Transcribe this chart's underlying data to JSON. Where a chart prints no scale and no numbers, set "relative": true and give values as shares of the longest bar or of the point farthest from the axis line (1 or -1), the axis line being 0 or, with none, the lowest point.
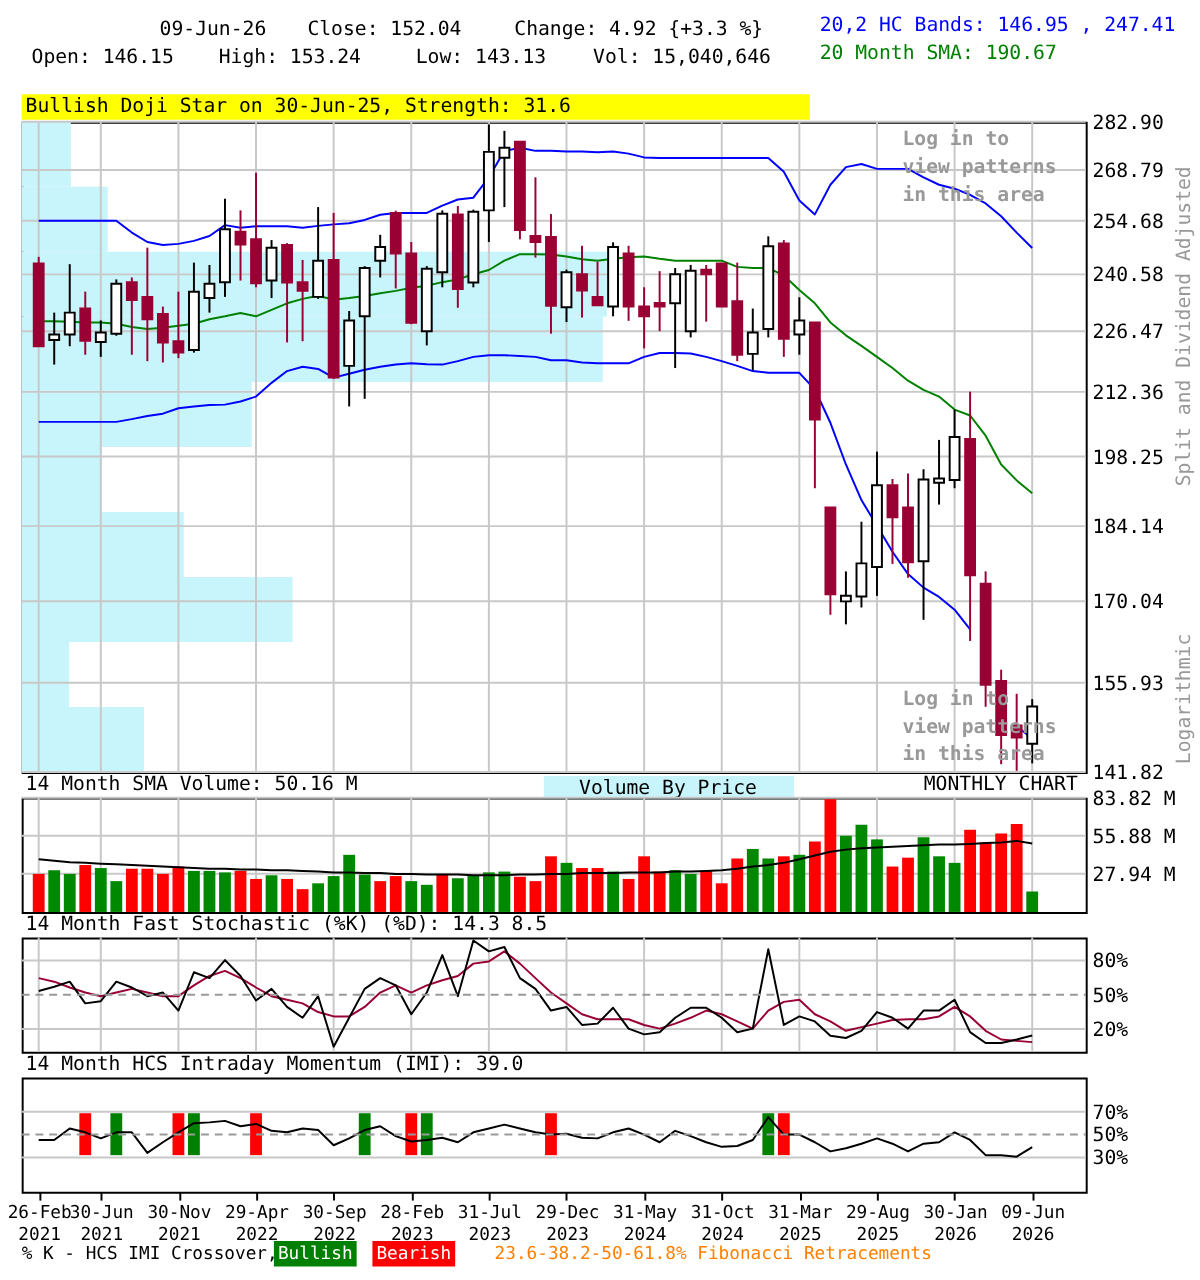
{
  "chart_data": [
    {
      "type": "candlestick",
      "log": true,
      "grid": true,
      "tick_labels": "y",
      "ylabel": "Split and Dividend Adjusted",
      "ylim": [
        141.82,
        282.9
      ],
      "yticks": [
        141.82,
        155.93,
        170.04,
        184.14,
        198.25,
        212.36,
        226.47,
        240.58,
        254.68,
        268.79,
        {
          "value": 282.9,
          "label": "282.90"
        }
      ],
      "categories": [
        null,
        null,
        null,
        null,
        null,
        null,
        null,
        null,
        null,
        null,
        null,
        null,
        null,
        null,
        null,
        null,
        null,
        null,
        null,
        null,
        null,
        null,
        null,
        null,
        null,
        null,
        null,
        null,
        null,
        null,
        null,
        null,
        null,
        null,
        null,
        null,
        null,
        null,
        null,
        null,
        null,
        null,
        null,
        null,
        null,
        null,
        null,
        null,
        null,
        null,
        null,
        null,
        null,
        null,
        null,
        null,
        null,
        null,
        null,
        null,
        null,
        null,
        null,
        null,
        null
      ],
      "ohlc": [
        [
          243.4,
          245.1,
          222.9,
          222.9
        ],
        [
          224.4,
          231.0,
          218.6,
          225.7
        ],
        [
          225.7,
          243.2,
          222.9,
          231.0
        ],
        [
          232.0,
          236.2,
          220.9,
          224.2
        ],
        [
          223.9,
          229.1,
          220.4,
          226.2
        ],
        [
          225.9,
          239.3,
          225.4,
          238.2
        ],
        [
          238.6,
          239.8,
          220.9,
          234.1
        ],
        [
          234.9,
          247.5,
          219.4,
          229.4
        ],
        [
          230.7,
          232.5,
          219.1,
          223.8
        ],
        [
          224.1,
          236.2,
          220.1,
          221.4
        ],
        [
          222.0,
          243.6,
          221.4,
          236.2
        ],
        [
          234.6,
          243.0,
          231.0,
          238.2
        ],
        [
          238.6,
          260.7,
          234.9,
          252.4
        ],
        [
          251.7,
          257.5,
          239.0,
          248.3
        ],
        [
          249.7,
          268.0,
          237.3,
          238.3
        ],
        [
          239.0,
          249.5,
          234.6,
          247.5
        ],
        [
          248.2,
          248.7,
          223.8,
          238.5
        ],
        [
          238.6,
          244.3,
          224.1,
          236.4
        ],
        [
          234.9,
          258.4,
          234.4,
          244.1
        ],
        [
          244.3,
          256.8,
          215.3,
          215.6
        ],
        [
          218.3,
          231.4,
          209.1,
          229.1
        ],
        [
          230.1,
          242.7,
          210.8,
          242.2
        ],
        [
          244.1,
          250.9,
          239.8,
          247.7
        ],
        [
          256.8,
          257.4,
          237.0,
          246.0
        ],
        [
          246.0,
          249.0,
          228.2,
          228.5
        ],
        [
          226.5,
          242.7,
          223.1,
          242.0
        ],
        [
          241.1,
          257.5,
          237.3,
          256.6
        ],
        [
          256.4,
          258.7,
          232.2,
          236.9
        ],
        [
          238.5,
          257.7,
          237.3,
          257.1
        ],
        [
          257.5,
          282.1,
          249.0,
          274.0
        ],
        [
          272.3,
          280.2,
          258.4,
          275.2
        ],
        [
          277.0,
          277.0,
          249.7,
          252.2
        ],
        [
          250.6,
          266.7,
          244.9,
          249.0
        ],
        [
          250.3,
          256.5,
          225.9,
          232.7
        ],
        [
          232.3,
          241.8,
          228.7,
          241.1
        ],
        [
          240.6,
          248.0,
          229.8,
          236.5
        ],
        [
          234.9,
          243.8,
          232.8,
          232.8
        ],
        [
          232.5,
          248.9,
          230.1,
          247.7
        ],
        [
          246.0,
          248.0,
          229.0,
          232.5
        ],
        [
          232.5,
          237.3,
          222.4,
          230.1
        ],
        [
          233.4,
          241.4,
          226.5,
          232.5
        ],
        [
          233.3,
          242.2,
          217.8,
          240.6
        ],
        [
          226.5,
          243.0,
          225.0,
          241.5
        ],
        [
          241.8,
          243.0,
          228.8,
          240.6
        ],
        [
          243.4,
          243.4,
          232.5,
          232.5
        ],
        [
          233.8,
          243.6,
          219.4,
          220.9
        ],
        [
          221.1,
          232.0,
          217.3,
          226.2
        ],
        [
          227.0,
          250.5,
          225.0,
          247.9
        ],
        [
          248.6,
          249.5,
          220.4,
          224.7
        ],
        [
          225.7,
          234.8,
          220.9,
          229.1
        ],
        [
          228.6,
          228.6,
          191.7,
          206.2
        ],
        [
          187.8,
          187.8,
          167.6,
          171.3
        ],
        [
          170.0,
          175.5,
          165.9,
          171.0
        ],
        [
          170.9,
          185.0,
          168.9,
          177.0
        ],
        [
          176.3,
          199.3,
          171.0,
          192.3
        ],
        [
          192.3,
          193.6,
          176.9,
          185.9
        ],
        [
          187.8,
          194.7,
          174.3,
          177.2
        ],
        [
          177.4,
          195.6,
          166.7,
          193.5
        ],
        [
          192.8,
          201.8,
          188.4,
          193.7
        ],
        [
          193.4,
          208.4,
          191.7,
          202.4
        ],
        [
          202.0,
          212.4,
          163.0,
          174.8
        ],
        [
          173.2,
          175.5,
          152.0,
          155.6
        ],
        [
          156.2,
          158.1,
          143.0,
          147.5
        ],
        [
          149.0,
          154.1,
          142.0,
          147.12
        ],
        [
          146.15,
          153.24,
          143.13,
          152.04
        ]
      ],
      "colors": [
        "#990033",
        "#ffffff",
        "#ffffff",
        "#990033",
        "#ffffff",
        "#ffffff",
        "#990033",
        "#990033",
        "#990033",
        "#990033",
        "#ffffff",
        "#ffffff",
        "#ffffff",
        "#990033",
        "#990033",
        "#ffffff",
        "#990033",
        "#990033",
        "#ffffff",
        "#990033",
        "#ffffff",
        "#ffffff",
        "#ffffff",
        "#990033",
        "#990033",
        "#ffffff",
        "#ffffff",
        "#990033",
        "#ffffff",
        "#ffffff",
        "#ffffff",
        "#990033",
        "#990033",
        "#990033",
        "#ffffff",
        "#990033",
        "#990033",
        "#ffffff",
        "#990033",
        "#990033",
        "#990033",
        "#ffffff",
        "#ffffff",
        "#990033",
        "#990033",
        "#990033",
        "#ffffff",
        "#ffffff",
        "#990033",
        "#ffffff",
        "#990033",
        "#990033",
        "#ffffff",
        "#ffffff",
        "#ffffff",
        "#990033",
        "#990033",
        "#ffffff",
        "#ffffff",
        "#ffffff",
        "#990033",
        "#990033",
        "#990033",
        "#990033",
        "#ffffff"
      ],
      "series": [
        {
          "name": "20,2 HC Bands: 146.95 , 247.41",
          "type": "line",
          "color": "#0000ff",
          "values": [
            254.7,
            254.7,
            254.7,
            254.7,
            254.7,
            254.7,
            251.5,
            249.0,
            248.2,
            248.5,
            249.3,
            250.6,
            253.5,
            252.8,
            253.2,
            253.2,
            253.2,
            252.8,
            253.3,
            253.7,
            254.0,
            254.9,
            256.3,
            256.8,
            256.8,
            256.8,
            258.8,
            260.5,
            261.0,
            266.7,
            274.3,
            275.2,
            274.3,
            274.3,
            274.1,
            274.1,
            273.9,
            274.1,
            273.5,
            272.4,
            272.2,
            272.2,
            272.2,
            272.2,
            272.2,
            272.2,
            272.2,
            272.2,
            268.3,
            260.2,
            256.4,
            264.6,
            269.6,
            270.5,
            269.1,
            269.1,
            269.1,
            266.7,
            264.6,
            263.5,
            261.8,
            259.4,
            255.9,
            251.5,
            247.41
          ]
        },
        {
          "type": "line",
          "color": "#0000ff",
          "values": [
            205.7,
            205.7,
            205.7,
            205.7,
            205.7,
            205.7,
            206.3,
            207.0,
            207.5,
            208.7,
            209.1,
            209.4,
            209.5,
            210.2,
            211.3,
            214.4,
            217.1,
            218.1,
            217.6,
            215.6,
            216.5,
            217.4,
            218.1,
            218.6,
            218.9,
            218.7,
            218.6,
            219.4,
            220.4,
            220.8,
            220.8,
            220.6,
            220.4,
            219.6,
            219.6,
            219.1,
            218.9,
            218.9,
            218.9,
            220.4,
            221.3,
            221.3,
            221.2,
            220.4,
            219.4,
            218.3,
            217.1,
            216.7,
            216.7,
            216.7,
            212.9,
            205.5,
            196.6,
            189.3,
            184.2,
            179.2,
            175.0,
            172.5,
            170.8,
            168.5,
            165.0,
            null,
            null,
            148.9,
            146.95
          ]
        },
        {
          "name": "20 Month SMA: 190.67",
          "type": "line",
          "color": "#008000",
          "values": [
            228.9,
            228.9,
            228.8,
            228.6,
            228.6,
            228.3,
            227.5,
            227.0,
            227.3,
            227.8,
            228.3,
            229.4,
            230.1,
            230.9,
            230.1,
            231.7,
            233.3,
            234.4,
            235.2,
            234.2,
            234.6,
            235.1,
            235.8,
            236.4,
            237.2,
            237.7,
            238.6,
            239.3,
            240.6,
            241.7,
            244.1,
            245.8,
            245.8,
            245.7,
            245.2,
            244.5,
            244.1,
            244.6,
            245.0,
            245.2,
            244.6,
            244.1,
            244.1,
            244.1,
            244.1,
            242.5,
            242.2,
            242.2,
            240.3,
            236.6,
            233.3,
            228.6,
            225.5,
            223.0,
            220.4,
            217.8,
            214.9,
            212.8,
            211.3,
            208.4,
            207.1,
            202.7,
            196.6,
            193.3,
            190.67
          ]
        }
      ],
      "annotations": [
        "09-Jun-26",
        "Close: 152.04",
        "Change: 4.92 {+3.3 %}",
        "Open: 146.15",
        "High: 153.24",
        "Low: 143.13",
        "Vol: 15,040,646",
        "Bullish Doji Star on 30-Jun-25, Strength: 31.6",
        "Log in to view patterns in this area",
        "Log in to view patterns in this area",
        "Logarithmic"
      ]
    },
    {
      "type": "bar",
      "orientation": "horizontal",
      "relative": true,
      "categories": [
        null,
        null,
        null,
        null,
        null,
        null,
        null,
        null,
        null,
        null
      ],
      "series": [
        {
          "name": "Volume By Price",
          "color": "#c8f4fb",
          "values": [
            0.084,
            0.147,
            1.0,
            0.993,
            0.393,
            0.137,
            0.277,
            0.463,
            0.081,
            0.209
          ]
        }
      ]
    },
    {
      "type": "bar",
      "title": "14 Month SMA Volume: 50.16 M",
      "grid": true,
      "tick_labels": "y",
      "ylim": [
        0,
        83.82
      ],
      "yticks": [
        {
          "value": 27.94,
          "label": "27.94 M"
        },
        {
          "value": 55.88,
          "label": "55.88 M"
        },
        {
          "value": 83.82,
          "label": "83.82 M"
        }
      ],
      "categories": [
        null,
        null,
        null,
        null,
        null,
        null,
        null,
        null,
        null,
        null,
        null,
        null,
        null,
        null,
        null,
        null,
        null,
        null,
        null,
        null,
        null,
        null,
        null,
        null,
        null,
        null,
        null,
        null,
        null,
        null,
        null,
        null,
        null,
        null,
        null,
        null,
        null,
        null,
        null,
        null,
        null,
        null,
        null,
        null,
        null,
        null,
        null,
        null,
        null,
        null,
        null,
        null,
        null,
        null,
        null,
        null,
        null,
        null,
        null,
        null,
        null,
        null,
        null,
        null,
        null
      ],
      "values": [
        27.9,
        30.6,
        27.9,
        34.4,
        32.2,
        22.6,
        31.7,
        31.7,
        27.9,
        33.3,
        30.1,
        30.1,
        29.0,
        30.1,
        24.2,
        26.9,
        24.2,
        16.7,
        21.0,
        26.3,
        41.9,
        27.4,
        22.6,
        26.3,
        22.6,
        19.9,
        27.4,
        24.7,
        26.9,
        29.0,
        29.6,
        25.8,
        22.6,
        40.8,
        36.0,
        32.2,
        32.2,
        29.6,
        24.2,
        40.8,
        29.6,
        30.6,
        27.9,
        30.1,
        21.0,
        39.2,
        46.2,
        39.2,
        40.8,
        41.9,
        51.6,
        82.7,
        55.9,
        63.9,
        53.2,
        33.3,
        39.8,
        54.8,
        40.8,
        36.0,
        60.2,
        51.0,
        57.5,
        64.5,
        15.04
      ],
      "colors": [
        "#ff0000",
        "#008800",
        "#008800",
        "#ff0000",
        "#008800",
        "#008800",
        "#ff0000",
        "#ff0000",
        "#ff0000",
        "#ff0000",
        "#008800",
        "#008800",
        "#008800",
        "#ff0000",
        "#ff0000",
        "#008800",
        "#ff0000",
        "#ff0000",
        "#008800",
        "#008800",
        "#008800",
        "#008800",
        "#ff0000",
        "#ff0000",
        "#008800",
        "#008800",
        "#ff0000",
        "#008800",
        "#008800",
        "#008800",
        "#008800",
        "#ff0000",
        "#ff0000",
        "#ff0000",
        "#008800",
        "#ff0000",
        "#ff0000",
        "#008800",
        "#ff0000",
        "#ff0000",
        "#ff0000",
        "#008800",
        "#008800",
        "#ff0000",
        "#ff0000",
        "#ff0000",
        "#008800",
        "#008800",
        "#ff0000",
        "#008800",
        "#ff0000",
        "#ff0000",
        "#008800",
        "#008800",
        "#008800",
        "#ff0000",
        "#ff0000",
        "#008800",
        "#008800",
        "#008800",
        "#ff0000",
        "#ff0000",
        "#ff0000",
        "#ff0000",
        "#008800"
      ],
      "series": [
        {
          "type": "line",
          "color": "#000000",
          "values": [
            38.7,
            37.6,
            36.5,
            36.0,
            35.4,
            34.9,
            34.4,
            33.8,
            33.3,
            32.8,
            32.2,
            31.7,
            31.7,
            31.2,
            31.2,
            30.6,
            30.6,
            30.1,
            29.6,
            29.0,
            29.0,
            28.5,
            28.5,
            27.9,
            27.9,
            27.4,
            27.4,
            27.4,
            26.9,
            26.9,
            26.9,
            27.4,
            27.4,
            27.9,
            27.9,
            28.5,
            28.5,
            28.5,
            29.0,
            29.0,
            29.0,
            29.6,
            29.6,
            30.1,
            30.6,
            31.7,
            33.3,
            34.4,
            36.0,
            38.7,
            41.4,
            44.1,
            45.7,
            46.7,
            47.3,
            47.8,
            48.4,
            48.9,
            49.4,
            49.4,
            49.9,
            50.5,
            51.0,
            52.1,
            50.16
          ]
        }
      ],
      "annotations": [
        "MONTHLY CHART"
      ]
    },
    {
      "type": "line",
      "title": "14 Month Fast Stochastic (%K) (%D): 14.3  8.5",
      "grid": true,
      "tick_labels": "y",
      "ylim": [
        0,
        100
      ],
      "yticks": [
        {
          "value": 20,
          "label": "20%"
        },
        {
          "value": 50,
          "label": "50%"
        },
        {
          "value": 80,
          "label": "80%"
        }
      ],
      "ref_lines": [
        {
          "axis": "y",
          "value": 50,
          "line_style": "dashed",
          "color": "#999999"
        }
      ],
      "categories": [
        null,
        null,
        null,
        null,
        null,
        null,
        null,
        null,
        null,
        null,
        null,
        null,
        null,
        null,
        null,
        null,
        null,
        null,
        null,
        null,
        null,
        null,
        null,
        null,
        null,
        null,
        null,
        null,
        null,
        null,
        null,
        null,
        null,
        null,
        null,
        null,
        null,
        null,
        null,
        null,
        null,
        null,
        null,
        null,
        null,
        null,
        null,
        null,
        null,
        null,
        null,
        null,
        null,
        null,
        null,
        null,
        null,
        null,
        null,
        null,
        null,
        null,
        null,
        null,
        null
      ],
      "series": [
        {
          "type": "line",
          "color": "#990033",
          "values": [
            64.5,
            61.4,
            56.3,
            51.9,
            48.7,
            51.9,
            55.1,
            51.9,
            48.7,
            48.7,
            58.2,
            66.4,
            70.8,
            64.5,
            56.3,
            48.7,
            45.6,
            42.4,
            34.8,
            31.0,
            31.0,
            39.3,
            51.9,
            58.2,
            51.9,
            58.2,
            62.6,
            66.4,
            77.2,
            79.1,
            87.9,
            77.2,
            64.5,
            51.9,
            42.4,
            32.9,
            28.5,
            28.5,
            28.5,
            23.5,
            20.3,
            24.7,
            29.8,
            36.1,
            32.9,
            26.6,
            20.3,
            36.1,
            43.7,
            45.6,
            32.9,
            26.6,
            18.4,
            21.6,
            24.7,
            27.9,
            28.5,
            28.5,
            31.0,
            39.3,
            31.0,
            18.4,
            10.8,
            9.6,
            8.5
          ]
        },
        {
          "type": "line",
          "color": "#000000",
          "values": [
            53.2,
            56.9,
            61.4,
            42.4,
            44.3,
            61.4,
            56.3,
            48.7,
            51.9,
            36.1,
            69.6,
            64.5,
            80.3,
            66.4,
            44.9,
            55.1,
            39.3,
            29.8,
            48.7,
            4.5,
            29.8,
            55.1,
            64.5,
            58.2,
            32.9,
            51.9,
            84.7,
            48.7,
            97.4,
            87.9,
            91.7,
            64.5,
            55.1,
            36.1,
            39.3,
            23.5,
            24.7,
            38.6,
            20.3,
            15.3,
            17.2,
            29.8,
            38.6,
            38.6,
            29.8,
            17.2,
            20.3,
            89.8,
            23.5,
            31.0,
            26.6,
            14.0,
            12.1,
            18.4,
            34.8,
            29.8,
            20.3,
            36.1,
            36.1,
            45.6,
            17.2,
            7.7,
            7.7,
            10.8,
            14.3
          ]
        }
      ]
    },
    {
      "type": "line",
      "title": "14 Month HCS Intraday Momentum (IMI): 39.0",
      "grid": "y",
      "legend": "bottom",
      "legend_title": "% K - HCS IMI Crossover,",
      "ylim": [
        0,
        100
      ],
      "yticks": [
        {
          "value": 30,
          "label": "30%"
        },
        {
          "value": 50,
          "label": "50%"
        },
        {
          "value": 70,
          "label": "70%"
        }
      ],
      "ref_lines": [
        {
          "axis": "y",
          "value": 50,
          "line_style": "dashed",
          "color": "#999999"
        }
      ],
      "categories": [
        "26-Feb 2021",
        null,
        null,
        null,
        "30-Jun 2021",
        null,
        null,
        null,
        null,
        "30-Nov 2021",
        null,
        null,
        null,
        null,
        "29-Apr 2022",
        null,
        null,
        null,
        null,
        "30-Sep 2022",
        null,
        null,
        null,
        null,
        "28-Feb 2023",
        null,
        null,
        null,
        null,
        "31-Jul 2023",
        null,
        null,
        null,
        null,
        "29-Dec 2023",
        null,
        null,
        null,
        null,
        "31-May 2024",
        null,
        null,
        null,
        null,
        "31-Oct 2024",
        null,
        null,
        null,
        null,
        "31-Mar 2025",
        null,
        null,
        null,
        null,
        "29-Aug 2025",
        null,
        null,
        null,
        null,
        "30-Jan 2026",
        null,
        null,
        null,
        null,
        "09-Jun 2026"
      ],
      "series": [
        {
          "name": "Bullish",
          "type": "bar",
          "color": "#008000",
          "base": [
            null,
            null,
            null,
            null,
            null,
            32,
            null,
            null,
            null,
            null,
            32,
            null,
            null,
            null,
            null,
            null,
            null,
            null,
            null,
            null,
            null,
            32,
            null,
            null,
            null,
            32,
            null,
            null,
            null,
            null,
            null,
            null,
            null,
            null,
            null,
            null,
            null,
            null,
            null,
            null,
            null,
            null,
            null,
            null,
            null,
            null,
            null,
            32,
            null,
            null,
            null,
            null,
            null,
            null,
            null,
            null,
            null,
            null,
            null,
            null,
            null,
            null,
            null,
            null,
            null
          ],
          "values": [
            null,
            null,
            null,
            null,
            null,
            36.7,
            null,
            null,
            null,
            null,
            36.7,
            null,
            null,
            null,
            null,
            null,
            null,
            null,
            null,
            null,
            null,
            36.7,
            null,
            null,
            null,
            36.7,
            null,
            null,
            null,
            null,
            null,
            null,
            null,
            null,
            null,
            null,
            null,
            null,
            null,
            null,
            null,
            null,
            null,
            null,
            null,
            null,
            null,
            36.7,
            null,
            null,
            null,
            null,
            null,
            null,
            null,
            null,
            null,
            null,
            null,
            null,
            null,
            null,
            null,
            null,
            null
          ]
        },
        {
          "name": "Bearish",
          "type": "bar",
          "color": "#ff0000",
          "base": [
            null,
            null,
            null,
            32,
            null,
            null,
            null,
            null,
            null,
            32,
            null,
            null,
            null,
            null,
            32,
            null,
            null,
            null,
            null,
            null,
            null,
            null,
            null,
            null,
            32,
            null,
            null,
            null,
            null,
            null,
            null,
            null,
            null,
            32,
            null,
            null,
            null,
            null,
            null,
            null,
            null,
            null,
            null,
            null,
            null,
            null,
            null,
            null,
            32,
            null,
            null,
            null,
            null,
            null,
            null,
            null,
            null,
            null,
            null,
            null,
            null,
            null,
            null,
            null,
            null
          ],
          "values": [
            null,
            null,
            null,
            36.7,
            null,
            null,
            null,
            null,
            null,
            36.7,
            null,
            null,
            null,
            null,
            36.7,
            null,
            null,
            null,
            null,
            null,
            null,
            null,
            null,
            null,
            36.7,
            null,
            null,
            null,
            null,
            null,
            null,
            null,
            null,
            36.7,
            null,
            null,
            null,
            null,
            null,
            null,
            null,
            null,
            null,
            null,
            null,
            null,
            null,
            null,
            36.7,
            null,
            null,
            null,
            null,
            null,
            null,
            null,
            null,
            null,
            null,
            null,
            null,
            null,
            null,
            null,
            null
          ]
        },
        {
          "type": "line",
          "color": "#000000",
          "values": [
            45.3,
            45.3,
            55.3,
            52.0,
            46.7,
            52.0,
            52.0,
            34.0,
            43.3,
            52.0,
            60.0,
            60.7,
            62.0,
            57.3,
            59.3,
            53.3,
            52.0,
            55.3,
            54.0,
            40.7,
            46.7,
            54.0,
            57.3,
            48.7,
            44.0,
            45.3,
            47.3,
            43.3,
            52.0,
            55.3,
            58.7,
            55.3,
            52.0,
            50.0,
            50.7,
            47.3,
            46.7,
            52.0,
            55.3,
            50.0,
            43.3,
            53.3,
            48.7,
            43.3,
            39.3,
            40.0,
            45.3,
            65.3,
            50.0,
            50.0,
            43.3,
            35.3,
            38.0,
            42.0,
            46.7,
            42.0,
            35.3,
            42.0,
            43.3,
            52.0,
            45.3,
            32.0,
            32.0,
            30.7,
            39.0
          ]
        }
      ],
      "annotations": [
        "23.6-38.2-50-61.8% Fibonacci Retracements"
      ]
    }
  ]
}
